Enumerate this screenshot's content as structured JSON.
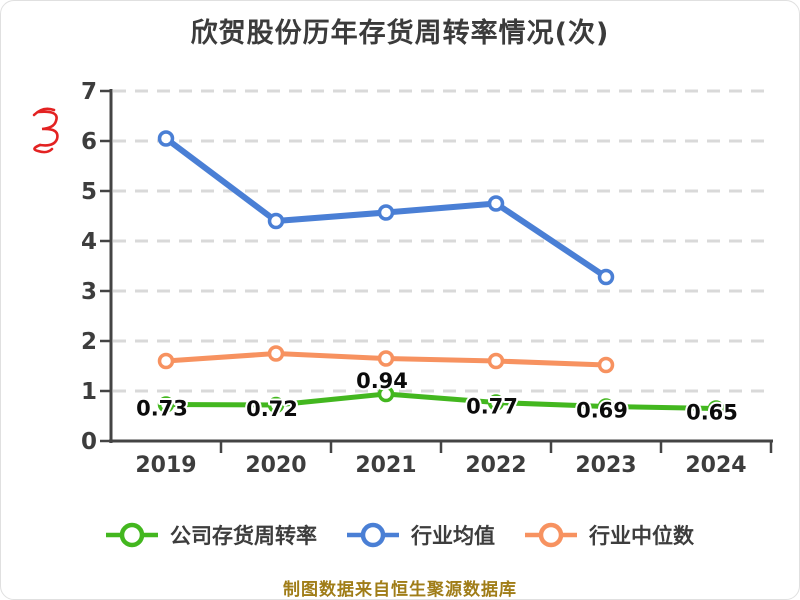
{
  "title": "欣贺股份历年存货周转率情况(次)",
  "footer_note": "制图数据来自恒生聚源数据库",
  "watermark": {
    "name": "red-scribble-mark",
    "color": "#e32222"
  },
  "colors": {
    "company_line": "#43b71f",
    "industry_avg_line": "#4a7fd5",
    "industry_median_line": "#f79260",
    "grid": "#d9d9d9",
    "axis": "#444444",
    "tick_text": "#3d3d3d",
    "title_text": "#3b3b3b",
    "data_label_text": "#0b0b0b",
    "footer_text": "#a07d18"
  },
  "chart_data": {
    "type": "line",
    "title": "欣贺股份历年存货周转率情况(次)",
    "categories": [
      "2019",
      "2020",
      "2021",
      "2022",
      "2023",
      "2024"
    ],
    "series": [
      {
        "name": "公司存货周转率",
        "color": "#43b71f",
        "values": [
          0.73,
          0.72,
          0.94,
          0.77,
          0.69,
          0.65
        ],
        "data_labels": [
          "0.73",
          "0.72",
          "0.94",
          "0.77",
          "0.69",
          "0.65"
        ],
        "labels_shown": true
      },
      {
        "name": "行业均值",
        "color": "#4a7fd5",
        "values": [
          6.05,
          4.4,
          4.57,
          4.75,
          3.28,
          null
        ],
        "labels_shown": false
      },
      {
        "name": "行业中位数",
        "color": "#f79260",
        "values": [
          1.6,
          1.75,
          1.65,
          1.6,
          1.52,
          null
        ],
        "labels_shown": false
      }
    ],
    "xlabel": "",
    "ylabel": "",
    "ylim": [
      0,
      7
    ],
    "yticks": [
      0,
      1,
      2,
      3,
      4,
      5,
      6,
      7
    ],
    "grid": "horizontal-dashed",
    "legend_position": "bottom"
  }
}
